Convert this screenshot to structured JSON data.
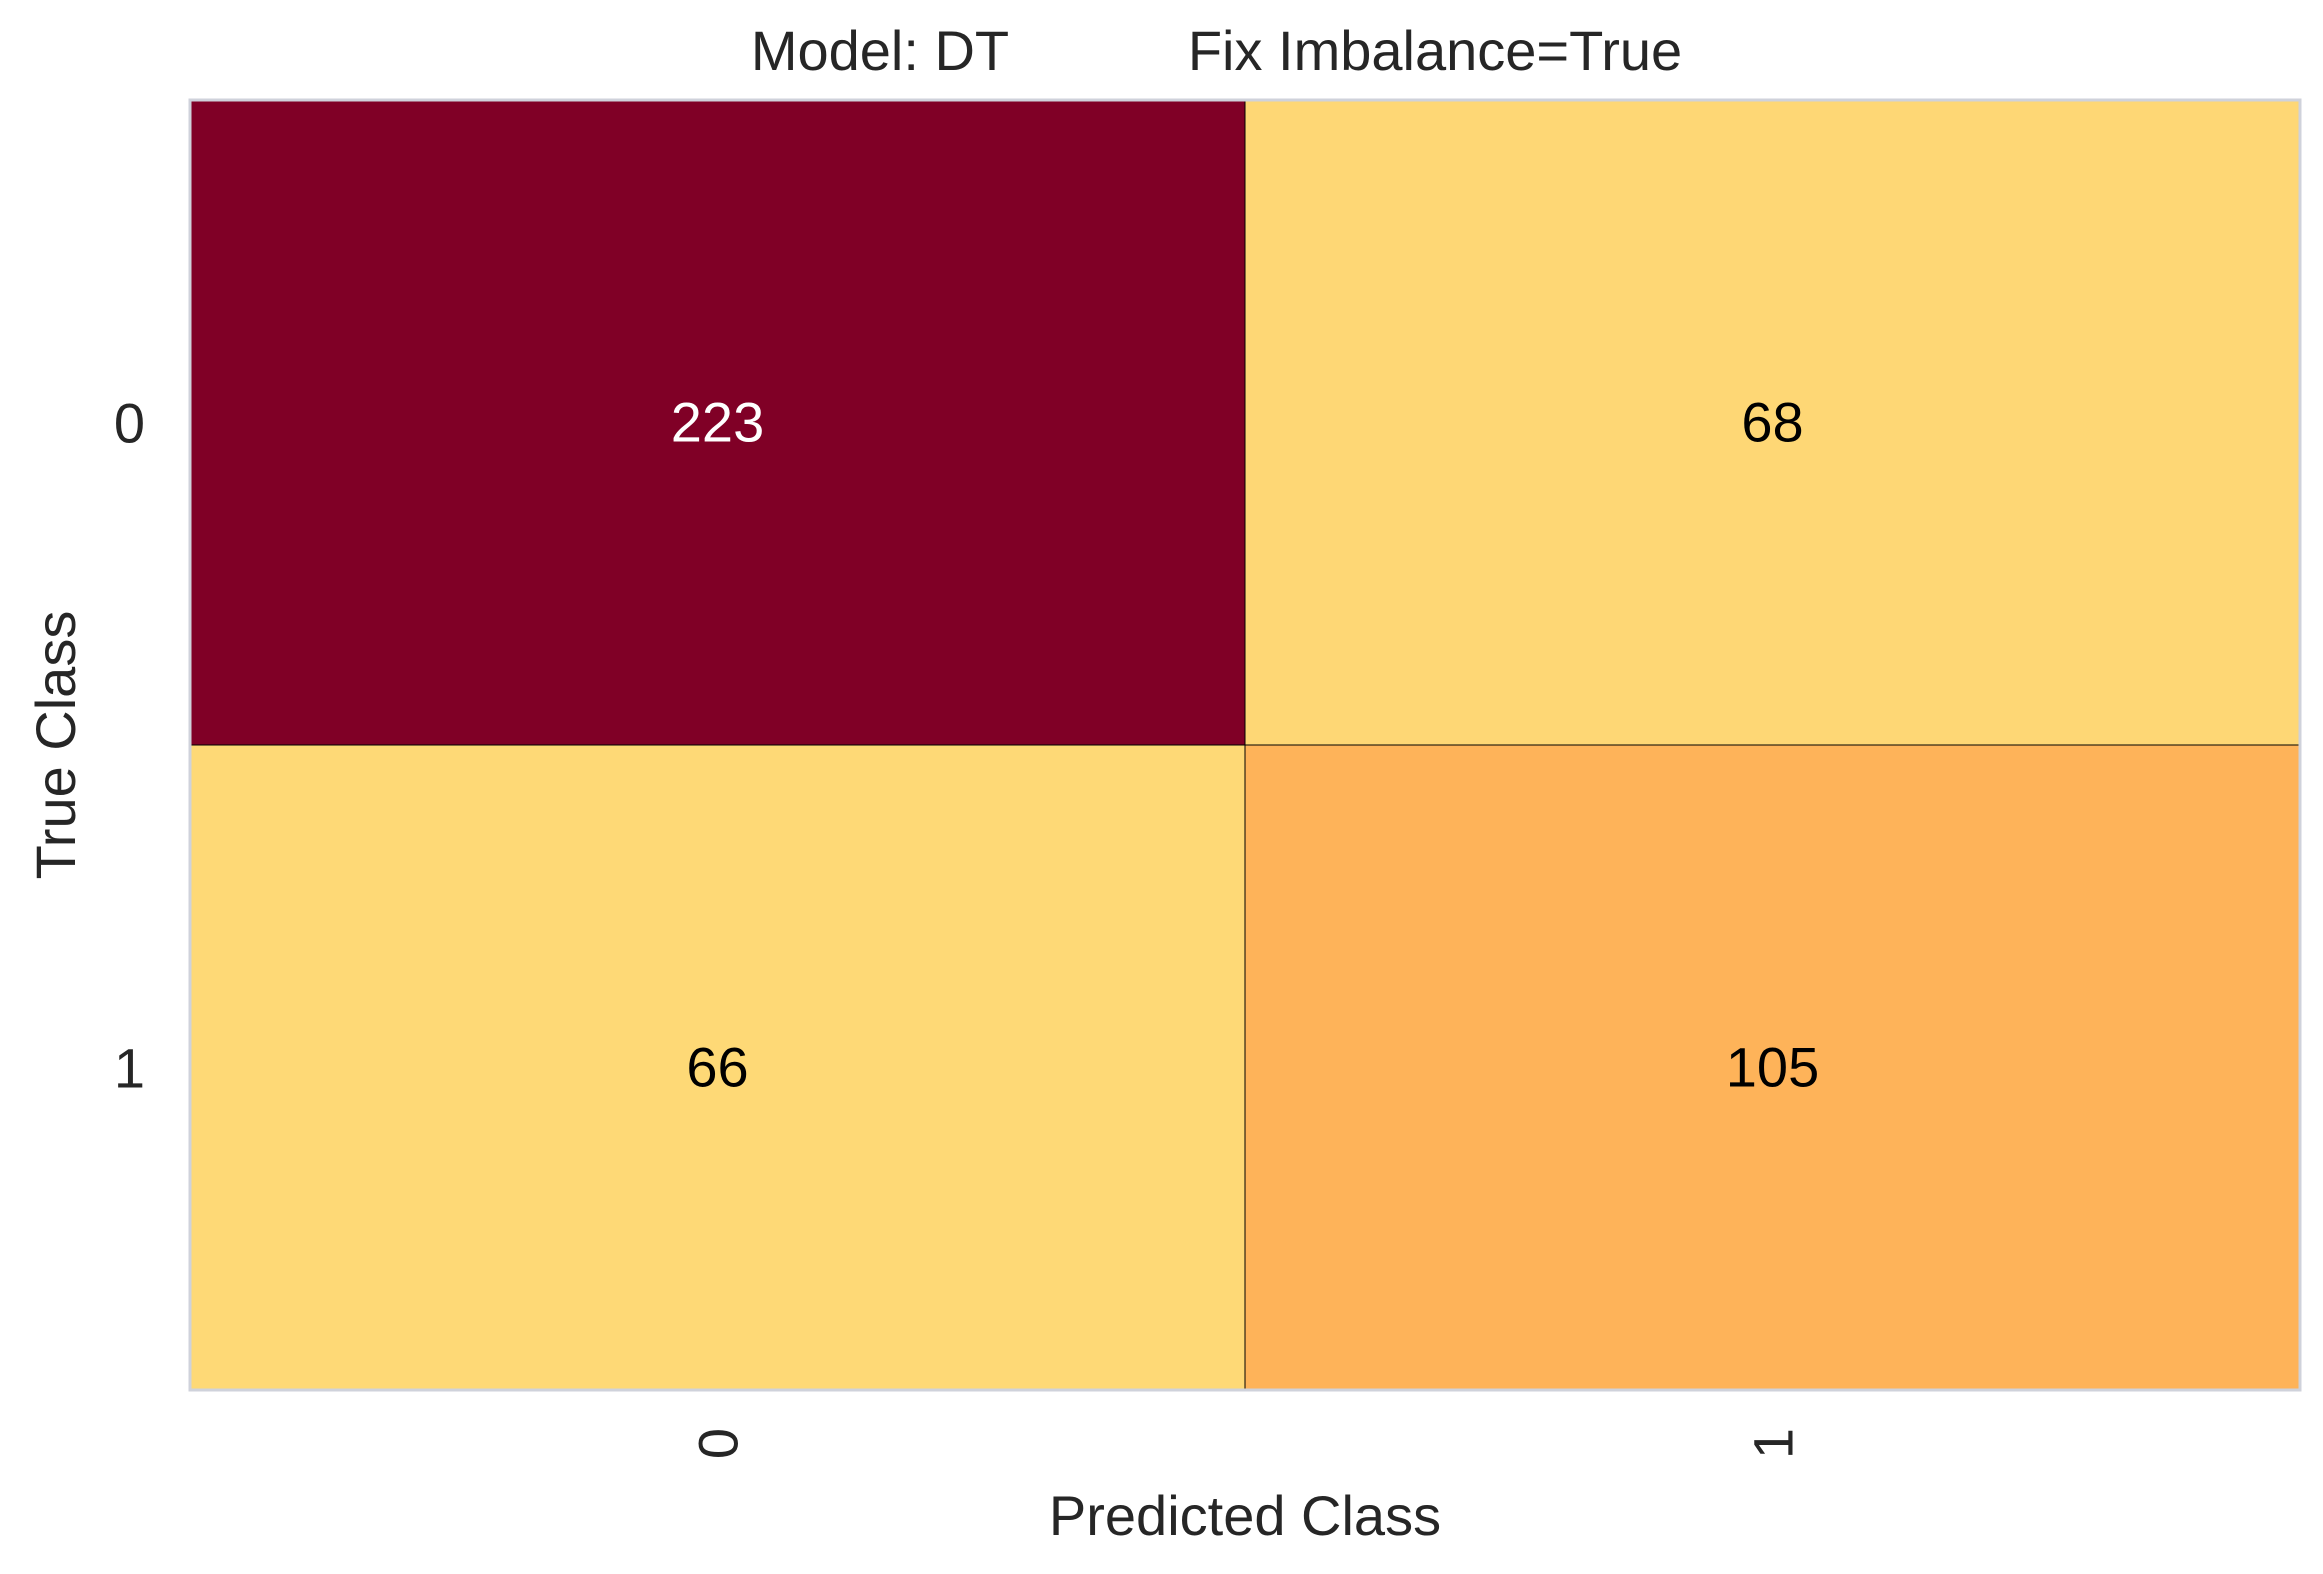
{
  "chart_data": {
    "type": "heatmap",
    "title_model": "Model: DT",
    "title_setting": "Fix Imbalance=True",
    "xlabel": "Predicted Class",
    "ylabel": "True Class",
    "x_categories": [
      "0",
      "1"
    ],
    "y_categories": [
      "0",
      "1"
    ],
    "values": [
      [
        223,
        68
      ],
      [
        66,
        105
      ]
    ],
    "colors": {
      "high": "#800026",
      "mid": "#fd8d3c",
      "low": "#fed976",
      "text_dark_cell": "#ffffff",
      "text_light_cell": "#000000",
      "grid": "#cfd2db"
    }
  }
}
